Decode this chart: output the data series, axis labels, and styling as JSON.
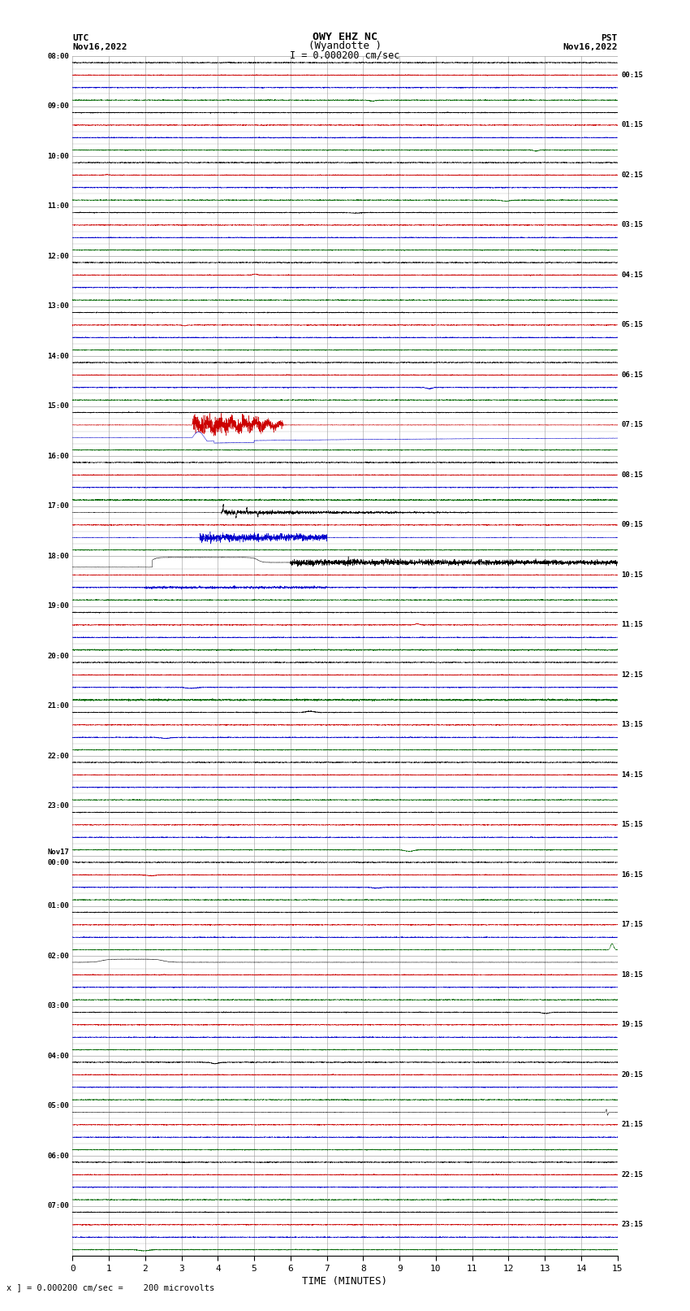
{
  "title_line1": "OWY EHZ NC",
  "title_line2": "(Wyandotte )",
  "title_line3": "I = 0.000200 cm/sec",
  "label_utc": "UTC",
  "label_pst": "PST",
  "date_left": "Nov16,2022",
  "date_right": "Nov16,2022",
  "xlabel": "TIME (MINUTES)",
  "footer": "x ] = 0.000200 cm/sec =    200 microvolts",
  "x_min": 0,
  "x_max": 15,
  "x_ticks": [
    0,
    1,
    2,
    3,
    4,
    5,
    6,
    7,
    8,
    9,
    10,
    11,
    12,
    13,
    14,
    15
  ],
  "utc_hour_labels": [
    "08:00",
    "09:00",
    "10:00",
    "11:00",
    "12:00",
    "13:00",
    "14:00",
    "15:00",
    "16:00",
    "17:00",
    "18:00",
    "19:00",
    "20:00",
    "21:00",
    "22:00",
    "23:00",
    "Nov17\n00:00",
    "01:00",
    "02:00",
    "03:00",
    "04:00",
    "05:00",
    "06:00",
    "07:00"
  ],
  "pst_hour_labels": [
    "00:15",
    "01:15",
    "02:15",
    "03:15",
    "04:15",
    "05:15",
    "06:15",
    "07:15",
    "08:15",
    "09:15",
    "10:15",
    "11:15",
    "12:15",
    "13:15",
    "14:15",
    "15:15",
    "16:15",
    "17:15",
    "18:15",
    "19:15",
    "20:15",
    "21:15",
    "22:15",
    "23:15"
  ],
  "colors": {
    "black": "#000000",
    "red": "#cc0000",
    "blue": "#0000cc",
    "green": "#006600",
    "grid_v": "#999999",
    "grid_h": "#000000",
    "bg": "#ffffff"
  },
  "num_hours": 24,
  "traces_per_hour": 3,
  "noise_amp": 0.025,
  "figsize": [
    8.5,
    16.13
  ],
  "dpi": 100
}
